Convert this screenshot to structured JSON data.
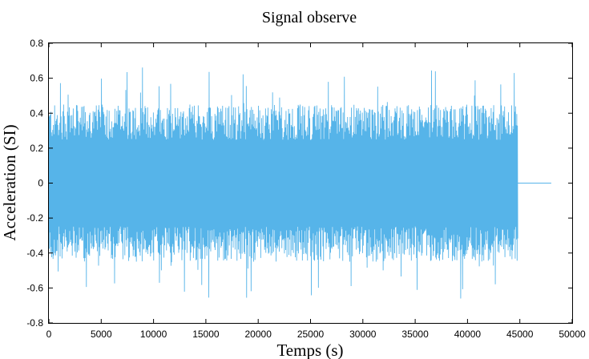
{
  "chart_data": {
    "type": "line",
    "title": "Signal observe",
    "xlabel": "Temps (s)",
    "ylabel": "Acceleration (SI)",
    "xlim": [
      0,
      50000
    ],
    "ylim": [
      -0.8,
      0.8
    ],
    "x_ticks": [
      0,
      5000,
      10000,
      15000,
      20000,
      25000,
      30000,
      35000,
      40000,
      45000,
      50000
    ],
    "y_ticks": [
      -0.8,
      -0.6,
      -0.4,
      -0.2,
      0,
      0.2,
      0.4,
      0.6,
      0.8
    ],
    "x_tick_labels": [
      "0",
      "5000",
      "10000",
      "15000",
      "20000",
      "25000",
      "30000",
      "35000",
      "40000",
      "45000",
      "50000"
    ],
    "y_tick_labels": [
      "-0.8",
      "-0.6",
      "-0.4",
      "-0.2",
      "0",
      "0.2",
      "0.4",
      "0.6",
      "0.8"
    ],
    "grid": false,
    "series": [
      {
        "color": "#56b4e9",
        "signal_x_range": [
          0,
          44800
        ],
        "flat_x_range": [
          44800,
          48000
        ],
        "flat_value": 0,
        "typical_amplitude": 0.45,
        "max": 0.67,
        "min": -0.66
      }
    ]
  }
}
